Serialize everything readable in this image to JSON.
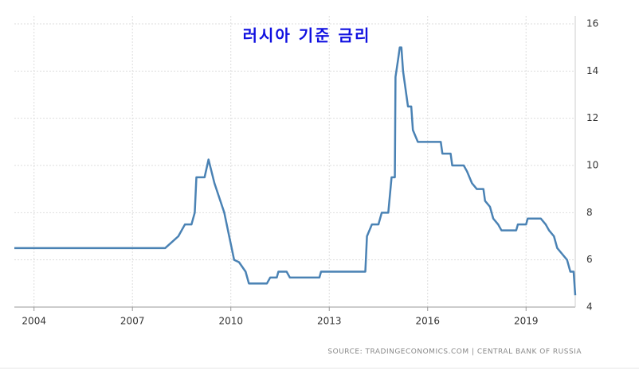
{
  "chart_data": {
    "type": "line",
    "title": "러시아 기준 금리",
    "source": "SOURCE: TRADINGECONOMICS.COM | CENTRAL BANK OF RUSSIA",
    "color": "#4a82b4",
    "grid": true,
    "x": [
      2003.4,
      2008.0,
      2008.2,
      2008.4,
      2008.6,
      2008.8,
      2008.9,
      2008.95,
      2009.2,
      2009.32,
      2009.5,
      2009.8,
      2009.95,
      2010.1,
      2010.25,
      2010.45,
      2010.55,
      2011.1,
      2011.2,
      2011.4,
      2011.45,
      2011.7,
      2011.8,
      2012.7,
      2012.75,
      2014.1,
      2014.15,
      2014.3,
      2014.5,
      2014.6,
      2014.8,
      2014.9,
      2015.0,
      2015.02,
      2015.1,
      2015.15,
      2015.2,
      2015.25,
      2015.4,
      2015.5,
      2015.55,
      2015.7,
      2016.4,
      2016.45,
      2016.7,
      2016.75,
      2017.1,
      2017.2,
      2017.35,
      2017.5,
      2017.7,
      2017.75,
      2017.9,
      2018.0,
      2018.15,
      2018.25,
      2018.7,
      2018.75,
      2019.0,
      2019.05,
      2019.45,
      2019.6,
      2019.7,
      2019.85,
      2019.95,
      2020.1,
      2020.25,
      2020.35,
      2020.45,
      2020.5
    ],
    "values": [
      6.5,
      6.5,
      6.75,
      7.0,
      7.5,
      7.5,
      8.0,
      9.5,
      9.5,
      10.25,
      9.25,
      8.0,
      7.0,
      6.0,
      5.9,
      5.5,
      5.0,
      5.0,
      5.25,
      5.25,
      5.5,
      5.5,
      5.25,
      5.25,
      5.5,
      5.5,
      7.0,
      7.5,
      7.5,
      8.0,
      8.0,
      9.5,
      9.5,
      13.75,
      14.5,
      15.0,
      15.0,
      14.0,
      12.5,
      12.5,
      11.5,
      11.0,
      11.0,
      10.5,
      10.5,
      10.0,
      10.0,
      9.75,
      9.25,
      9.0,
      9.0,
      8.5,
      8.25,
      7.75,
      7.5,
      7.25,
      7.25,
      7.5,
      7.5,
      7.75,
      7.75,
      7.5,
      7.25,
      7.0,
      6.5,
      6.25,
      6.0,
      5.5,
      5.5,
      4.5
    ],
    "xlim": [
      2003.4,
      2020.5
    ],
    "xticks": [
      2004,
      2007,
      2010,
      2013,
      2016,
      2019
    ],
    "ylim": [
      4,
      16
    ],
    "yticks": [
      4,
      6,
      8,
      10,
      12,
      14,
      16
    ]
  }
}
